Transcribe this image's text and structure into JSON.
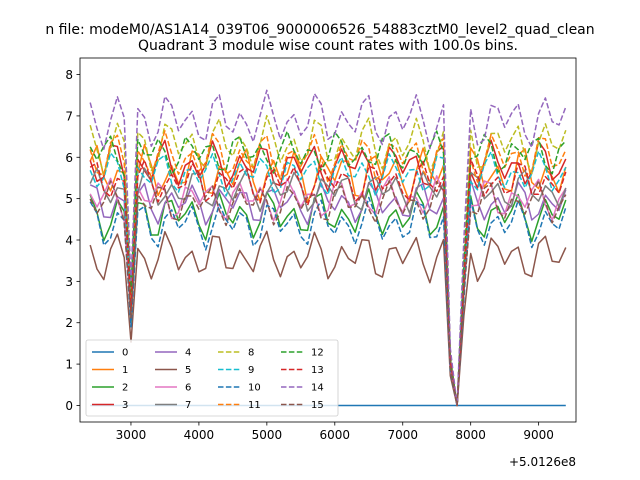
{
  "chart_data": {
    "type": "line",
    "suptitle": "n file: modeM0/AS1A14_039T06_9000006526_54883cztM0_level2_quad_clean",
    "title": "Quadrant 3 module wise count rates with 100.0s bins.",
    "xlabel": "",
    "ylabel": "",
    "x_offset_label": "+5.0126e8",
    "xlim": [
      2250,
      9550
    ],
    "ylim": [
      -0.4,
      8.4
    ],
    "xticks": [
      3000,
      4000,
      5000,
      6000,
      7000,
      8000,
      9000
    ],
    "xtick_labels": [
      "3000",
      "4000",
      "5000",
      "6000",
      "7000",
      "8000",
      "9000"
    ],
    "yticks": [
      0,
      1,
      2,
      3,
      4,
      5,
      6,
      7,
      8
    ],
    "ytick_labels": [
      "0",
      "1",
      "2",
      "3",
      "4",
      "5",
      "6",
      "7",
      "8"
    ],
    "grid": false,
    "legend_position": "lower-left",
    "legend_columns": 4,
    "time_start": 2400,
    "time_step": 100,
    "num_points": 71,
    "dip_points": [
      {
        "index": 6,
        "factor": 0.45
      },
      {
        "index": 53,
        "factor": 0.2
      },
      {
        "index": 54,
        "factor": 0.0
      },
      {
        "index": 55,
        "factor": 0.55
      }
    ],
    "series": [
      {
        "name": "0",
        "style": "solid",
        "color": "#1f77b4",
        "base": 0.0,
        "amp": 0.0,
        "phase": 0.0,
        "constant": true
      },
      {
        "name": "1",
        "style": "solid",
        "color": "#ff7f0e",
        "base": 5.6,
        "amp": 0.45,
        "phase": 0.3
      },
      {
        "name": "2",
        "style": "solid",
        "color": "#2ca02c",
        "base": 4.6,
        "amp": 0.4,
        "phase": 1.1
      },
      {
        "name": "3",
        "style": "solid",
        "color": "#d62728",
        "base": 5.8,
        "amp": 0.4,
        "phase": 2.0
      },
      {
        "name": "4",
        "style": "solid",
        "color": "#9467bd",
        "base": 4.9,
        "amp": 0.35,
        "phase": 0.7
      },
      {
        "name": "5",
        "style": "solid",
        "color": "#8c564b",
        "base": 3.6,
        "amp": 0.4,
        "phase": 1.6
      },
      {
        "name": "6",
        "style": "solid",
        "color": "#e377c2",
        "base": 5.0,
        "amp": 0.35,
        "phase": 2.6
      },
      {
        "name": "7",
        "style": "solid",
        "color": "#7f7f7f",
        "base": 5.2,
        "amp": 0.35,
        "phase": 0.2
      },
      {
        "name": "8",
        "style": "dashed",
        "color": "#bcbd22",
        "base": 6.3,
        "amp": 0.45,
        "phase": 1.3
      },
      {
        "name": "9",
        "style": "dashed",
        "color": "#17becf",
        "base": 5.6,
        "amp": 0.35,
        "phase": 2.2
      },
      {
        "name": "10",
        "style": "dashed",
        "color": "#1f77b4",
        "base": 4.4,
        "amp": 0.4,
        "phase": 0.9
      },
      {
        "name": "11",
        "style": "dashed",
        "color": "#ff7f0e",
        "base": 6.0,
        "amp": 0.4,
        "phase": 1.8
      },
      {
        "name": "12",
        "style": "dashed",
        "color": "#2ca02c",
        "base": 6.1,
        "amp": 0.35,
        "phase": 2.8
      },
      {
        "name": "13",
        "style": "dashed",
        "color": "#d62728",
        "base": 5.4,
        "amp": 0.35,
        "phase": 0.5
      },
      {
        "name": "14",
        "style": "dashed",
        "color": "#9467bd",
        "base": 6.9,
        "amp": 0.45,
        "phase": 1.4
      },
      {
        "name": "15",
        "style": "dashed",
        "color": "#8c564b",
        "base": 4.9,
        "amp": 0.35,
        "phase": 2.4
      }
    ]
  }
}
